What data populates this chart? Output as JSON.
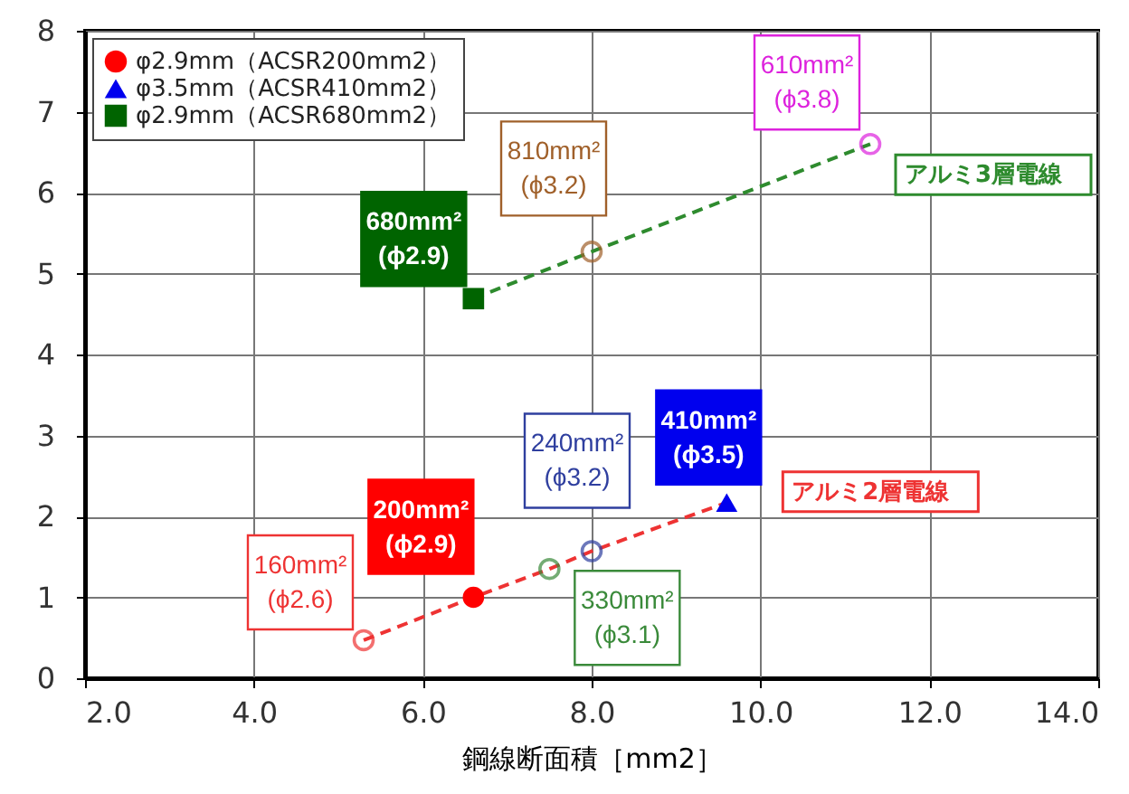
{
  "chart_data": {
    "type": "scatter",
    "xlabel": "鋼線断面積［mm2］",
    "xlim": [
      2,
      14
    ],
    "ylim": [
      0,
      8
    ],
    "xticks": [
      {
        "value": 2,
        "label": "2.0"
      },
      {
        "value": 4,
        "label": "4.0"
      },
      {
        "value": 6,
        "label": "6.0"
      },
      {
        "value": 8,
        "label": "8.0"
      },
      {
        "value": 10,
        "label": "10.0"
      },
      {
        "value": 12,
        "label": "12.0"
      },
      {
        "value": 14,
        "label": "14.0"
      }
    ],
    "yticks": [
      0,
      1,
      2,
      3,
      4,
      5,
      6,
      7,
      8
    ],
    "grid": true,
    "legend": "top left",
    "series": [
      {
        "type": "line",
        "name": "アルミ2層電線",
        "color": "#ee3333",
        "line_style": "dashed",
        "marker": "none",
        "x": [
          5.3,
          6.6,
          7.5,
          8.0,
          9.6
        ],
        "values": [
          0.47,
          1.0,
          1.35,
          1.57,
          2.17
        ]
      },
      {
        "type": "line",
        "name": "アルミ3層電線",
        "color": "#2e8b2e",
        "line_style": "dashed",
        "marker": "none",
        "x": [
          6.6,
          8.0,
          11.3
        ],
        "values": [
          4.69,
          5.27,
          6.6
        ]
      },
      {
        "name": "φ2.9mm（ACSR200mm2）",
        "color": "#ff0000",
        "marker": "circle",
        "x": [
          6.6
        ],
        "values": [
          1.0
        ]
      },
      {
        "name": "φ3.5mm（ACSR410mm2）",
        "color": "#0000ee",
        "marker": "triangle",
        "x": [
          9.6
        ],
        "values": [
          2.17
        ]
      },
      {
        "name": "φ2.9mm（ACSR680mm2）",
        "color": "#006400",
        "marker": "square",
        "x": [
          6.6
        ],
        "values": [
          4.69
        ]
      },
      {
        "marker": "circle",
        "x": [
          5.3,
          7.5,
          8.0,
          8.0,
          11.3
        ],
        "values": [
          0.47,
          1.35,
          1.57,
          5.27,
          6.6
        ],
        "colors": [
          "#ee3333",
          "#3a8a3a",
          "#2f3f9f",
          "#a0602a",
          "#dd22dd"
        ]
      }
    ],
    "annotations": [
      {
        "text": "160mm²\n(ϕ2.6)",
        "x": 5.3,
        "y": 0.47
      },
      {
        "text": "200mm²\n(ϕ2.9)",
        "x": 6.6,
        "y": 1.0
      },
      {
        "text": "240mm²\n(ϕ3.2)",
        "x": 8.0,
        "y": 1.57
      },
      {
        "text": "330mm²\n(ϕ3.1)",
        "x": 7.5,
        "y": 1.35
      },
      {
        "text": "410mm²\n(ϕ3.5)",
        "x": 9.6,
        "y": 2.17
      },
      {
        "text": "680mm²\n(ϕ2.9)",
        "x": 6.6,
        "y": 4.69
      },
      {
        "text": "810mm²\n(ϕ3.2)",
        "x": 8.0,
        "y": 5.27
      },
      {
        "text": "610mm²\n(ϕ3.8)",
        "x": 11.3,
        "y": 6.6
      }
    ]
  }
}
